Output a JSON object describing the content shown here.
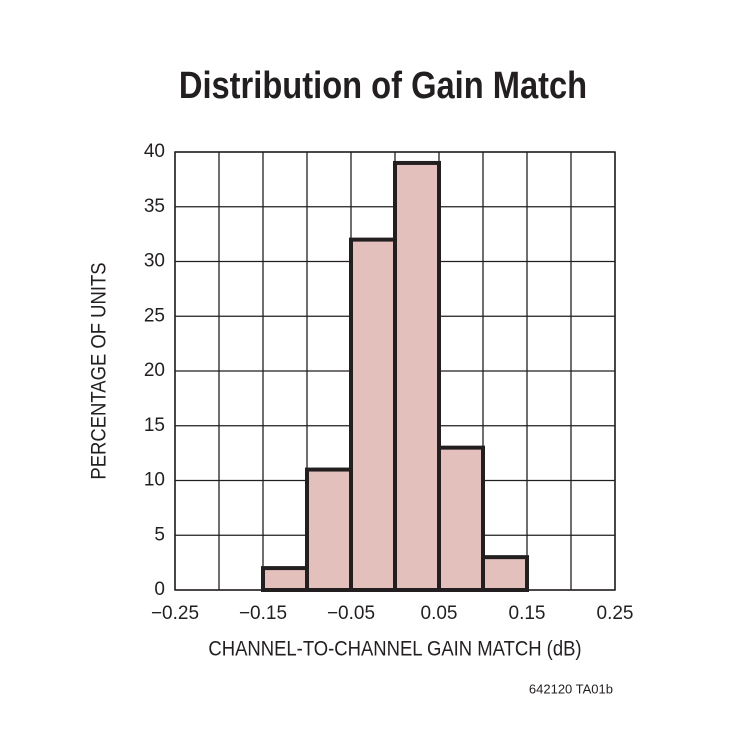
{
  "chart_data": {
    "type": "histogram",
    "title": "Distribution of Gain Match",
    "xlabel": "CHANNEL-TO-CHANNEL GAIN MATCH (dB)",
    "ylabel": "PERCENTAGE OF UNITS",
    "note": "642120 TA01b",
    "bins": [
      -0.15,
      -0.1,
      -0.05,
      0,
      0.05,
      0.1,
      0.15
    ],
    "counts": [
      2,
      11,
      32,
      39,
      13,
      3
    ],
    "color": "#e4c0bc",
    "edgecolor": "#231f20",
    "xlim": [
      -0.25,
      0.25
    ],
    "xticks": [
      {
        "value": -0.25,
        "label": "−0.25"
      },
      {
        "value": -0.15,
        "label": "−0.15"
      },
      {
        "value": -0.05,
        "label": "−0.05"
      },
      0.05,
      0.15,
      0.25
    ],
    "x_minor_ticks": [
      -0.2,
      -0.1,
      0,
      0.1,
      0.2
    ],
    "ylim": [
      0,
      40
    ],
    "yticks": [
      0,
      5,
      10,
      15,
      20,
      25,
      30,
      35,
      40
    ],
    "grid": true
  }
}
